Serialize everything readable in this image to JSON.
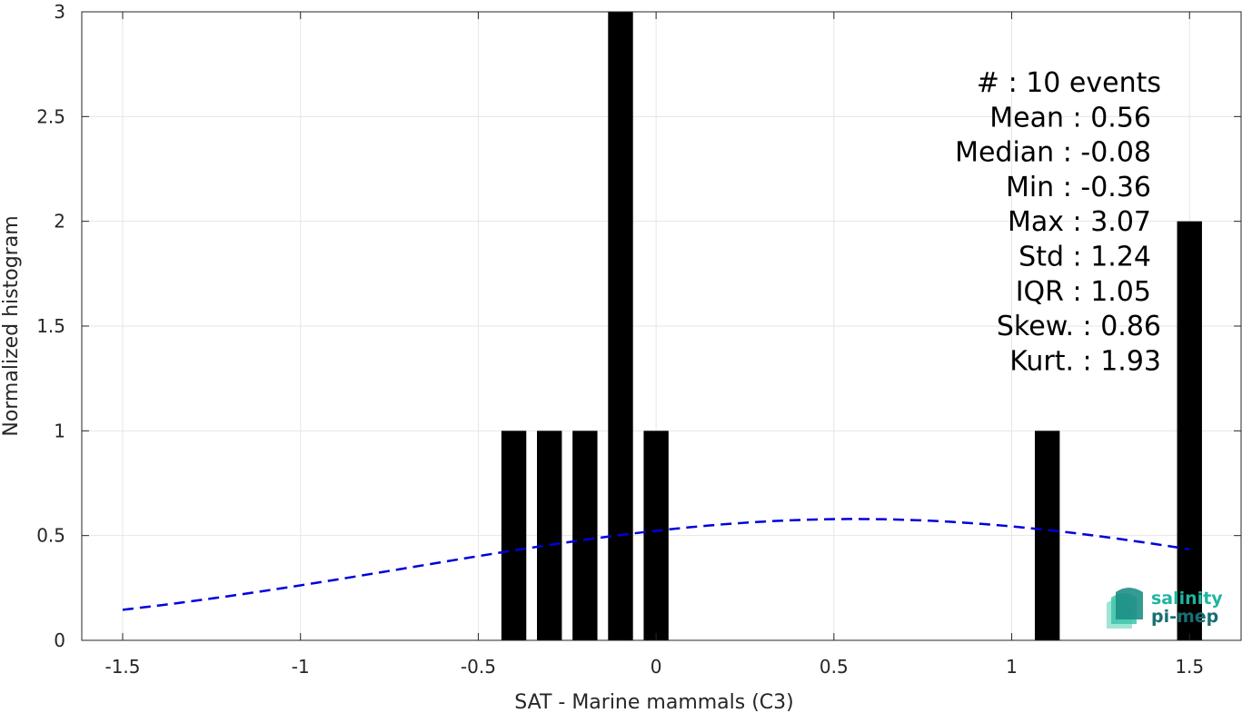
{
  "chart_data": {
    "type": "bar",
    "xlabel": "SAT - Marine mammals (C3)",
    "ylabel": "Normalized histogram",
    "xlim": [
      -1.615,
      1.645
    ],
    "ylim": [
      0,
      3
    ],
    "xticks": [
      -1.5,
      -1,
      -0.5,
      0,
      0.5,
      1,
      1.5
    ],
    "xtick_labels": [
      "-1.5",
      "-1",
      "-0.5",
      "0",
      "0.5",
      "1",
      "1.5"
    ],
    "yticks": [
      0,
      0.5,
      1,
      1.5,
      2,
      2.5,
      3
    ],
    "ytick_labels": [
      "0",
      "0.5",
      "1",
      "1.5",
      "2",
      "2.5",
      "3"
    ],
    "grid": true,
    "bar_color": "#000000",
    "bar_width": 0.07,
    "bars": [
      {
        "x": -0.4,
        "value": 1
      },
      {
        "x": -0.3,
        "value": 1
      },
      {
        "x": -0.2,
        "value": 1
      },
      {
        "x": -0.1,
        "value": 3
      },
      {
        "x": 0.0,
        "value": 1
      },
      {
        "x": 1.1,
        "value": 1
      },
      {
        "x": 1.5,
        "value": 2
      }
    ],
    "fit_curve": {
      "style": "dashed",
      "color": "#0000dd",
      "mean": 0.56,
      "std": 1.24,
      "x_range": [
        -1.5,
        1.5
      ]
    },
    "stats_lines": [
      "#  : 10 events",
      "Mean : 0.56",
      "Median : -0.08",
      "Min : -0.36",
      "Max : 3.07",
      "Std : 1.24",
      "IQR : 1.05",
      "Skew. : 0.86",
      "Kurt. : 1.93"
    ]
  },
  "logo": {
    "line1": "salinity",
    "line2": "pi-mep",
    "color1": "#1fb5a0",
    "color2": "#176f73"
  }
}
